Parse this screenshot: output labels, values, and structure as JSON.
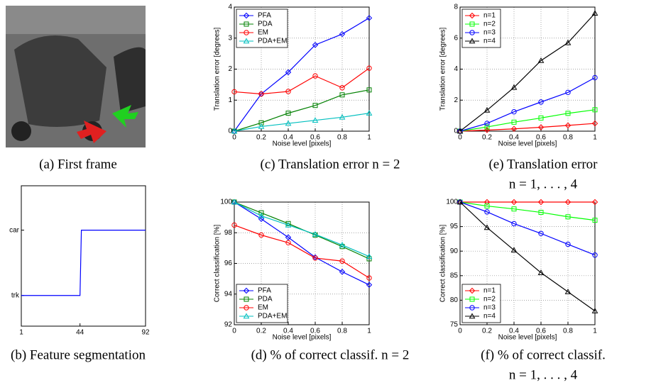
{
  "image_panel": {
    "caption": [
      "(a) First frame"
    ]
  },
  "chart_data": [
    {
      "type": "line",
      "caption": [
        "(b) Feature segmentation"
      ],
      "x": [
        1,
        44,
        45,
        92
      ],
      "xlim": [
        1,
        92
      ],
      "xticks": [
        1,
        44,
        92
      ],
      "ylim": [
        -0.47,
        1.68
      ],
      "yticks": [
        {
          "value": 0,
          "label": "trk"
        },
        {
          "value": 1,
          "label": "car"
        }
      ],
      "grid": false,
      "series": [
        {
          "color": "#0000ff",
          "marker": "none",
          "values": [
            0,
            0,
            1,
            1
          ]
        }
      ]
    },
    {
      "type": "line",
      "caption": [
        "(c) Translation error n = 2"
      ],
      "xlabel": "Noise level [pixels]",
      "ylabel": "Translation error [degrees]",
      "x": [
        0,
        0.2,
        0.4,
        0.6,
        0.8,
        1
      ],
      "xlim": [
        0,
        1
      ],
      "xticks": [
        0,
        0.2,
        0.4,
        0.6,
        0.8,
        1
      ],
      "ylim": [
        0,
        4
      ],
      "yticks": [
        0,
        1,
        2,
        3,
        4
      ],
      "grid": true,
      "legend": "upper left",
      "series": [
        {
          "name": "PFA",
          "color": "#0000ff",
          "marker": "diamond",
          "values": [
            0,
            1.2,
            1.9,
            2.78,
            3.13,
            3.65
          ]
        },
        {
          "name": "PDA",
          "color": "#008000",
          "marker": "square",
          "values": [
            0,
            0.27,
            0.58,
            0.83,
            1.17,
            1.33
          ]
        },
        {
          "name": "EM",
          "color": "#ff0000",
          "marker": "circle",
          "values": [
            1.27,
            1.2,
            1.28,
            1.78,
            1.4,
            2.03
          ]
        },
        {
          "name": "PDA+EM",
          "color": "#00bfbf",
          "marker": "triangle",
          "values": [
            0,
            0.15,
            0.25,
            0.35,
            0.45,
            0.58
          ]
        }
      ]
    },
    {
      "type": "line",
      "caption": [
        "(d) % of correct classif. n = 2"
      ],
      "xlabel": "Noise level [pixels]",
      "ylabel": "Correct classification [%]",
      "x": [
        0,
        0.2,
        0.4,
        0.6,
        0.8,
        1
      ],
      "xlim": [
        0,
        1
      ],
      "xticks": [
        0,
        0.2,
        0.4,
        0.6,
        0.8,
        1
      ],
      "ylim": [
        92,
        100
      ],
      "yticks": [
        92,
        94,
        96,
        98,
        100
      ],
      "grid": true,
      "legend": "lower left",
      "series": [
        {
          "name": "PFA",
          "color": "#0000ff",
          "marker": "diamond",
          "values": [
            100,
            98.9,
            97.7,
            96.4,
            95.45,
            94.6
          ]
        },
        {
          "name": "PDA",
          "color": "#008000",
          "marker": "square",
          "values": [
            100,
            99.3,
            98.6,
            97.85,
            97.1,
            96.3
          ]
        },
        {
          "name": "EM",
          "color": "#ff0000",
          "marker": "circle",
          "values": [
            98.5,
            97.85,
            97.35,
            96.35,
            96.15,
            95.05
          ]
        },
        {
          "name": "PDA+EM",
          "color": "#00bfbf",
          "marker": "triangle",
          "values": [
            100,
            99.1,
            98.5,
            97.9,
            97.2,
            96.45
          ]
        }
      ]
    },
    {
      "type": "line",
      "caption": [
        "(e) Translation error",
        "n = 1, . . . , 4"
      ],
      "xlabel": "Noise level [pixels]",
      "ylabel": "Translation error [degrees]",
      "x": [
        0,
        0.2,
        0.4,
        0.6,
        0.8,
        1
      ],
      "xlim": [
        0,
        1
      ],
      "xticks": [
        0,
        0.2,
        0.4,
        0.6,
        0.8,
        1
      ],
      "ylim": [
        0,
        8
      ],
      "yticks": [
        0,
        2,
        4,
        6,
        8
      ],
      "grid": true,
      "legend": "upper left",
      "series": [
        {
          "name": "n=1",
          "color": "#ff0000",
          "marker": "diamond",
          "values": [
            0,
            0.07,
            0.15,
            0.25,
            0.37,
            0.5
          ]
        },
        {
          "name": "n=2",
          "color": "#00ff00",
          "marker": "square",
          "values": [
            0,
            0.27,
            0.58,
            0.85,
            1.15,
            1.38
          ]
        },
        {
          "name": "n=3",
          "color": "#0000ff",
          "marker": "circle",
          "values": [
            0,
            0.5,
            1.25,
            1.88,
            2.5,
            3.45
          ]
        },
        {
          "name": "n=4",
          "color": "#000000",
          "marker": "triangle",
          "values": [
            0,
            1.35,
            2.82,
            4.55,
            5.7,
            7.6
          ]
        }
      ]
    },
    {
      "type": "line",
      "caption": [
        "(f) % of correct classif.",
        "n = 1, . . . , 4"
      ],
      "xlabel": "Noise level [pixels]",
      "ylabel": "Correct classification [%]",
      "x": [
        0,
        0.2,
        0.4,
        0.6,
        0.8,
        1
      ],
      "xlim": [
        0,
        1
      ],
      "xticks": [
        0,
        0.2,
        0.4,
        0.6,
        0.8,
        1
      ],
      "ylim": [
        75,
        100
      ],
      "yticks": [
        75,
        80,
        85,
        90,
        95,
        100
      ],
      "grid": true,
      "legend": "lower left",
      "series": [
        {
          "name": "n=1",
          "color": "#ff0000",
          "marker": "diamond",
          "values": [
            100,
            100,
            100,
            100,
            100,
            100
          ]
        },
        {
          "name": "n=2",
          "color": "#00ff00",
          "marker": "square",
          "values": [
            100,
            99.2,
            98.6,
            97.9,
            97,
            96.3
          ]
        },
        {
          "name": "n=3",
          "color": "#0000ff",
          "marker": "circle",
          "values": [
            100,
            98,
            95.6,
            93.6,
            91.4,
            89.2
          ]
        },
        {
          "name": "n=4",
          "color": "#000000",
          "marker": "triangle",
          "values": [
            100,
            94.8,
            90.2,
            85.6,
            81.7,
            77.8
          ]
        }
      ]
    }
  ]
}
